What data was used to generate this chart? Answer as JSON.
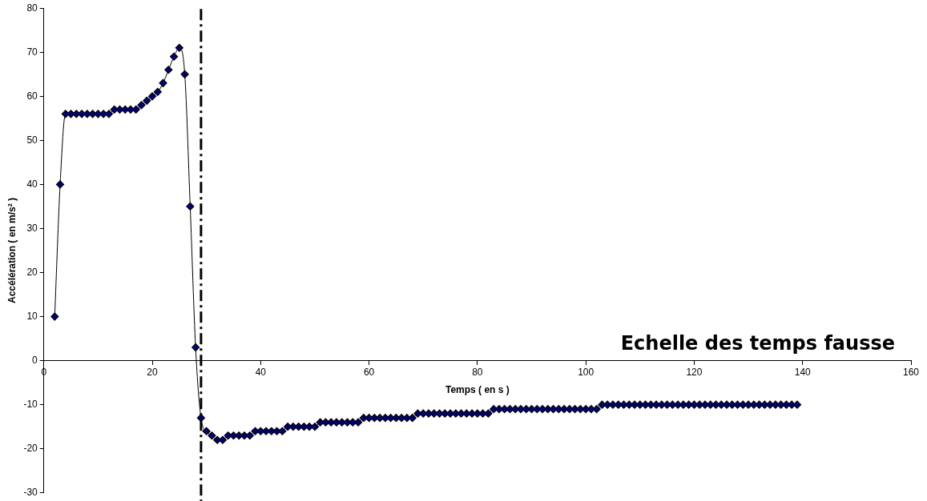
{
  "chart_data": {
    "type": "line",
    "xlabel": "Temps ( en s )",
    "ylabel": "Accélération ( en m/s² )",
    "annotations": [
      "Echelle des temps fausse"
    ],
    "xlim": [
      0,
      160
    ],
    "xticks": [
      0,
      20,
      40,
      60,
      80,
      100,
      120,
      140,
      160
    ],
    "ylim": [
      -30,
      80
    ],
    "yticks": [
      -30,
      -20,
      -10,
      0,
      10,
      20,
      30,
      40,
      50,
      60,
      70,
      80
    ],
    "grid": false,
    "legend": false,
    "marker": "diamond",
    "line_style": "solid",
    "ref_lines": [
      {
        "axis": "x",
        "value": 29,
        "label": null,
        "color": "#000000",
        "line_style": "dashed"
      }
    ],
    "series": [
      {
        "color": "#000080",
        "x": [
          2,
          3,
          4,
          5,
          6,
          7,
          8,
          9,
          10,
          11,
          12,
          13,
          14,
          15,
          16,
          17,
          18,
          19,
          20,
          21,
          22,
          23,
          24,
          25,
          26,
          27,
          28,
          29,
          30,
          31,
          32,
          33,
          34,
          35,
          36,
          37,
          38,
          39,
          40,
          41,
          42,
          43,
          44,
          45,
          46,
          47,
          48,
          49,
          50,
          51,
          52,
          53,
          54,
          55,
          56,
          57,
          58,
          59,
          60,
          61,
          62,
          63,
          64,
          65,
          66,
          67,
          68,
          69,
          70,
          71,
          72,
          73,
          74,
          75,
          76,
          77,
          78,
          79,
          80,
          81,
          82,
          83,
          84,
          85,
          86,
          87,
          88,
          89,
          90,
          91,
          92,
          93,
          94,
          95,
          96,
          97,
          98,
          99,
          100,
          101,
          102,
          103,
          104,
          105,
          106,
          107,
          108,
          109,
          110,
          111,
          112,
          113,
          114,
          115,
          116,
          117,
          118,
          119,
          120,
          121,
          122,
          123,
          124,
          125,
          126,
          127,
          128,
          129,
          130,
          131,
          132,
          133,
          134,
          135,
          136,
          137,
          138,
          139
        ],
        "values": [
          10,
          40,
          56,
          56,
          56,
          56,
          56,
          56,
          56,
          56,
          56,
          57,
          57,
          57,
          57,
          57,
          58,
          59,
          60,
          61,
          63,
          66,
          69,
          71,
          65,
          35,
          3,
          -13,
          -16,
          -17,
          -18,
          -18,
          -17,
          -17,
          -17,
          -17,
          -17,
          -16,
          -16,
          -16,
          -16,
          -16,
          -16,
          -15,
          -15,
          -15,
          -15,
          -15,
          -15,
          -14,
          -14,
          -14,
          -14,
          -14,
          -14,
          -14,
          -14,
          -13,
          -13,
          -13,
          -13,
          -13,
          -13,
          -13,
          -13,
          -13,
          -13,
          -12,
          -12,
          -12,
          -12,
          -12,
          -12,
          -12,
          -12,
          -12,
          -12,
          -12,
          -12,
          -12,
          -12,
          -11,
          -11,
          -11,
          -11,
          -11,
          -11,
          -11,
          -11,
          -11,
          -11,
          -11,
          -11,
          -11,
          -11,
          -11,
          -11,
          -11,
          -11,
          -11,
          -11,
          -10,
          -10,
          -10,
          -10,
          -10,
          -10,
          -10,
          -10,
          -10,
          -10,
          -10,
          -10,
          -10,
          -10,
          -10,
          -10,
          -10,
          -10,
          -10,
          -10,
          -10,
          -10,
          -10,
          -10,
          -10,
          -10,
          -10,
          -10,
          -10,
          -10,
          -10,
          -10,
          -10,
          -10,
          -10,
          -10,
          -10
        ]
      }
    ]
  }
}
